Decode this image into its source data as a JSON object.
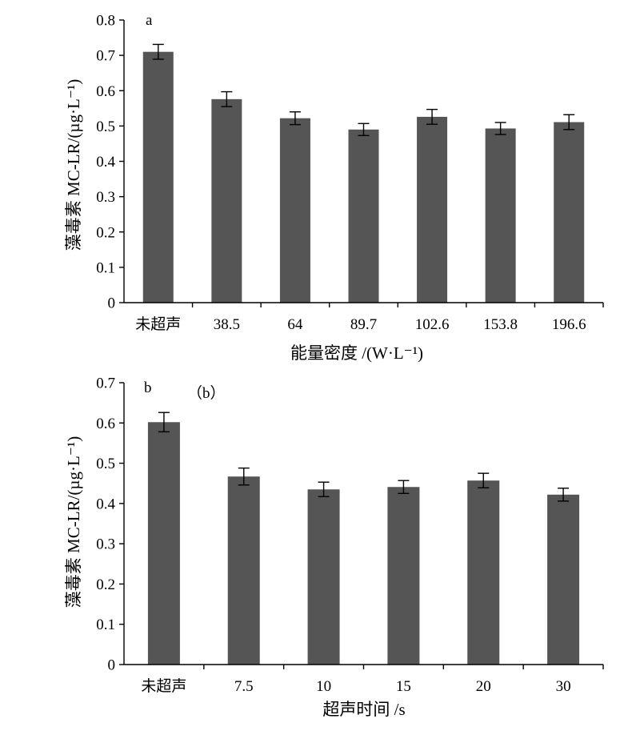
{
  "chart_data": [
    {
      "type": "bar",
      "panel_label": "a",
      "categories": [
        "未超声",
        "38.5",
        "64",
        "89.7",
        "102.6",
        "153.8",
        "196.6"
      ],
      "values": [
        0.71,
        0.576,
        0.522,
        0.49,
        0.526,
        0.493,
        0.511
      ],
      "errors": [
        0.021,
        0.021,
        0.018,
        0.017,
        0.021,
        0.017,
        0.021
      ],
      "xlabel": "能量密度 /(W·L⁻¹)",
      "ylabel": "藻毒素 MC-LR/(µg·L⁻¹)",
      "ylim": [
        0,
        0.8
      ],
      "yticks": [
        "0",
        "0.1",
        "0.2",
        "0.3",
        "0.4",
        "0.5",
        "0.6",
        "0.7",
        "0.8"
      ],
      "bar_color": "#555555",
      "grid": false
    },
    {
      "type": "bar",
      "panel_label": "b",
      "panel_caption": "（b）",
      "categories": [
        "未超声",
        "7.5",
        "10",
        "15",
        "20",
        "30"
      ],
      "values": [
        0.602,
        0.467,
        0.435,
        0.441,
        0.457,
        0.422
      ],
      "errors": [
        0.024,
        0.021,
        0.018,
        0.016,
        0.018,
        0.016
      ],
      "xlabel": "超声时间 /s",
      "ylabel": "藻毒素 MC-LR/(µg·L⁻¹)",
      "ylim": [
        0,
        0.7
      ],
      "yticks": [
        "0",
        "0.1",
        "0.2",
        "0.3",
        "0.4",
        "0.5",
        "0.6",
        "0.7"
      ],
      "bar_color": "#555555",
      "grid": false
    }
  ]
}
